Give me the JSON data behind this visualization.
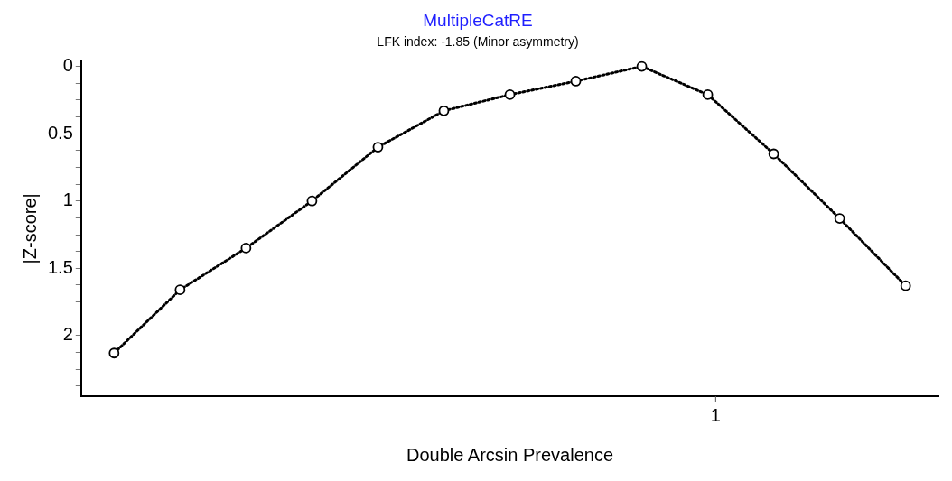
{
  "chart_data": {
    "type": "line",
    "title": "MultipleCatRE",
    "subtitle": "LFK index: -1.85 (Minor asymmetry)",
    "xlabel": "Double Arcsin Prevalence",
    "ylabel": "|Z-score|",
    "categories": [
      null,
      null,
      null,
      null,
      null,
      null,
      null,
      null,
      null,
      null,
      null,
      null,
      null
    ],
    "series": [
      {
        "color": "#000000",
        "values": [
          2.13,
          1.66,
          1.35,
          1.0,
          0.6,
          0.33,
          0.21,
          0.11,
          0.0,
          0.21,
          0.65,
          1.13,
          1.63
        ]
      }
    ],
    "ylim": [
      2.45,
      -0.04
    ],
    "yticks": [
      0,
      {
        "value": 0.125,
        "label": null
      },
      {
        "value": 0.25,
        "label": null
      },
      {
        "value": 0.375,
        "label": null
      },
      0.5,
      {
        "value": 0.625,
        "label": null
      },
      {
        "value": 0.75,
        "label": null
      },
      {
        "value": 0.875,
        "label": null
      },
      1,
      {
        "value": 1.125,
        "label": null
      },
      {
        "value": 1.25,
        "label": null
      },
      {
        "value": 1.375,
        "label": null
      },
      1.5,
      {
        "value": 1.625,
        "label": null
      },
      {
        "value": 1.75,
        "label": null
      },
      {
        "value": 1.875,
        "label": null
      },
      2,
      {
        "value": 2.125,
        "label": null
      },
      {
        "value": 2.25,
        "label": null
      },
      {
        "value": 2.375,
        "label": null
      }
    ],
    "annotations": [
      "1"
    ],
    "marker": "circle",
    "line_style": "dotted"
  }
}
